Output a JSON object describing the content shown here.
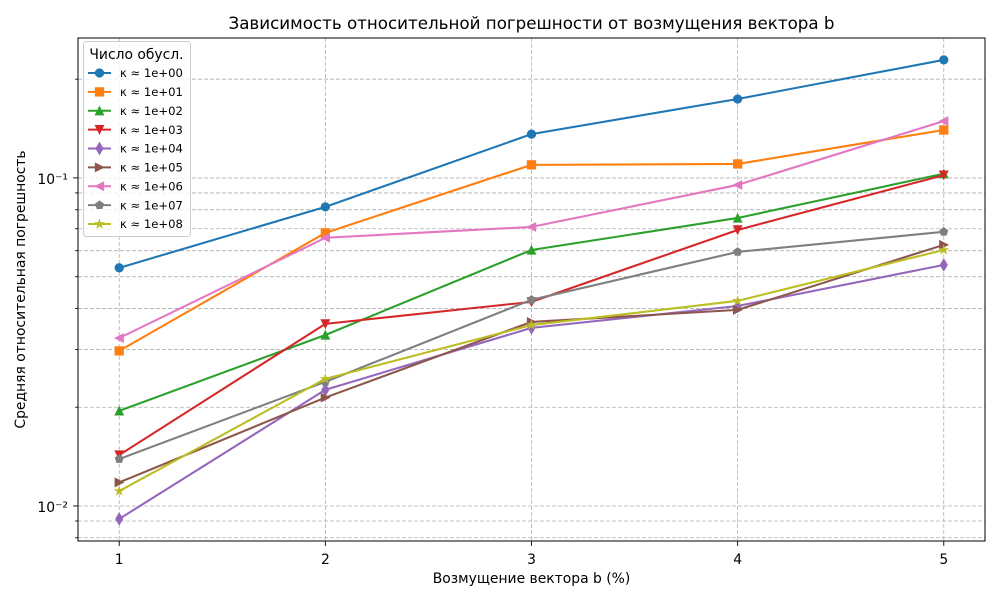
{
  "chart_data": {
    "type": "line",
    "title": "Зависимость относительной погрешности от возмущения вектора b",
    "xlabel": "Возмущение вектора b (%)",
    "ylabel": "Средняя относительная погрешность",
    "x": [
      1,
      2,
      3,
      4,
      5
    ],
    "x_ticks": [
      1,
      2,
      3,
      4,
      5
    ],
    "x_tick_labels": [
      "1",
      "2",
      "3",
      "4",
      "5"
    ],
    "y_ticks": [
      0.01,
      0.1
    ],
    "y_tick_labels": [
      "10⁻²",
      "10⁻¹"
    ],
    "xlim": [
      0.8,
      5.2
    ],
    "ylim": [
      0.00782,
      0.267
    ],
    "yscale": "log",
    "grid": true,
    "legend_loc": "top-left",
    "legend_title": "Число обусл.",
    "series": [
      {
        "name": "κ ≈ 1e+00",
        "color": "#1f77b4",
        "marker": "circle",
        "values": [
          0.0532,
          0.0816,
          0.136,
          0.174,
          0.229
        ]
      },
      {
        "name": "κ ≈ 1e+01",
        "color": "#ff7f0e",
        "marker": "square",
        "values": [
          0.0297,
          0.068,
          0.1096,
          0.1103,
          0.14
        ]
      },
      {
        "name": "κ ≈ 1e+02",
        "color": "#2ca02c",
        "marker": "triangle-up",
        "values": [
          0.0195,
          0.0332,
          0.0603,
          0.0755,
          0.103
        ]
      },
      {
        "name": "κ ≈ 1e+03",
        "color": "#d62728",
        "marker": "triangle-down",
        "values": [
          0.0143,
          0.0359,
          0.0419,
          0.0694,
          0.102
        ]
      },
      {
        "name": "κ ≈ 1e+04",
        "color": "#9467bd",
        "marker": "thin-diamond",
        "values": [
          0.00913,
          0.0226,
          0.0349,
          0.0407,
          0.0543
        ]
      },
      {
        "name": "κ ≈ 1e+05",
        "color": "#8c564b",
        "marker": "triangle-right",
        "values": [
          0.0118,
          0.0214,
          0.0364,
          0.0396,
          0.0625
        ]
      },
      {
        "name": "κ ≈ 1e+06",
        "color": "#e377c2",
        "marker": "triangle-left",
        "values": [
          0.0325,
          0.0657,
          0.0709,
          0.0952,
          0.149
        ]
      },
      {
        "name": "κ ≈ 1e+07",
        "color": "#7f7f7f",
        "marker": "pentagon",
        "values": [
          0.0139,
          0.0239,
          0.0425,
          0.0595,
          0.0685
        ]
      },
      {
        "name": "κ ≈ 1e+08",
        "color": "#bcbd22",
        "marker": "star",
        "values": [
          0.0111,
          0.0244,
          0.0356,
          0.0422,
          0.0603
        ]
      }
    ]
  }
}
